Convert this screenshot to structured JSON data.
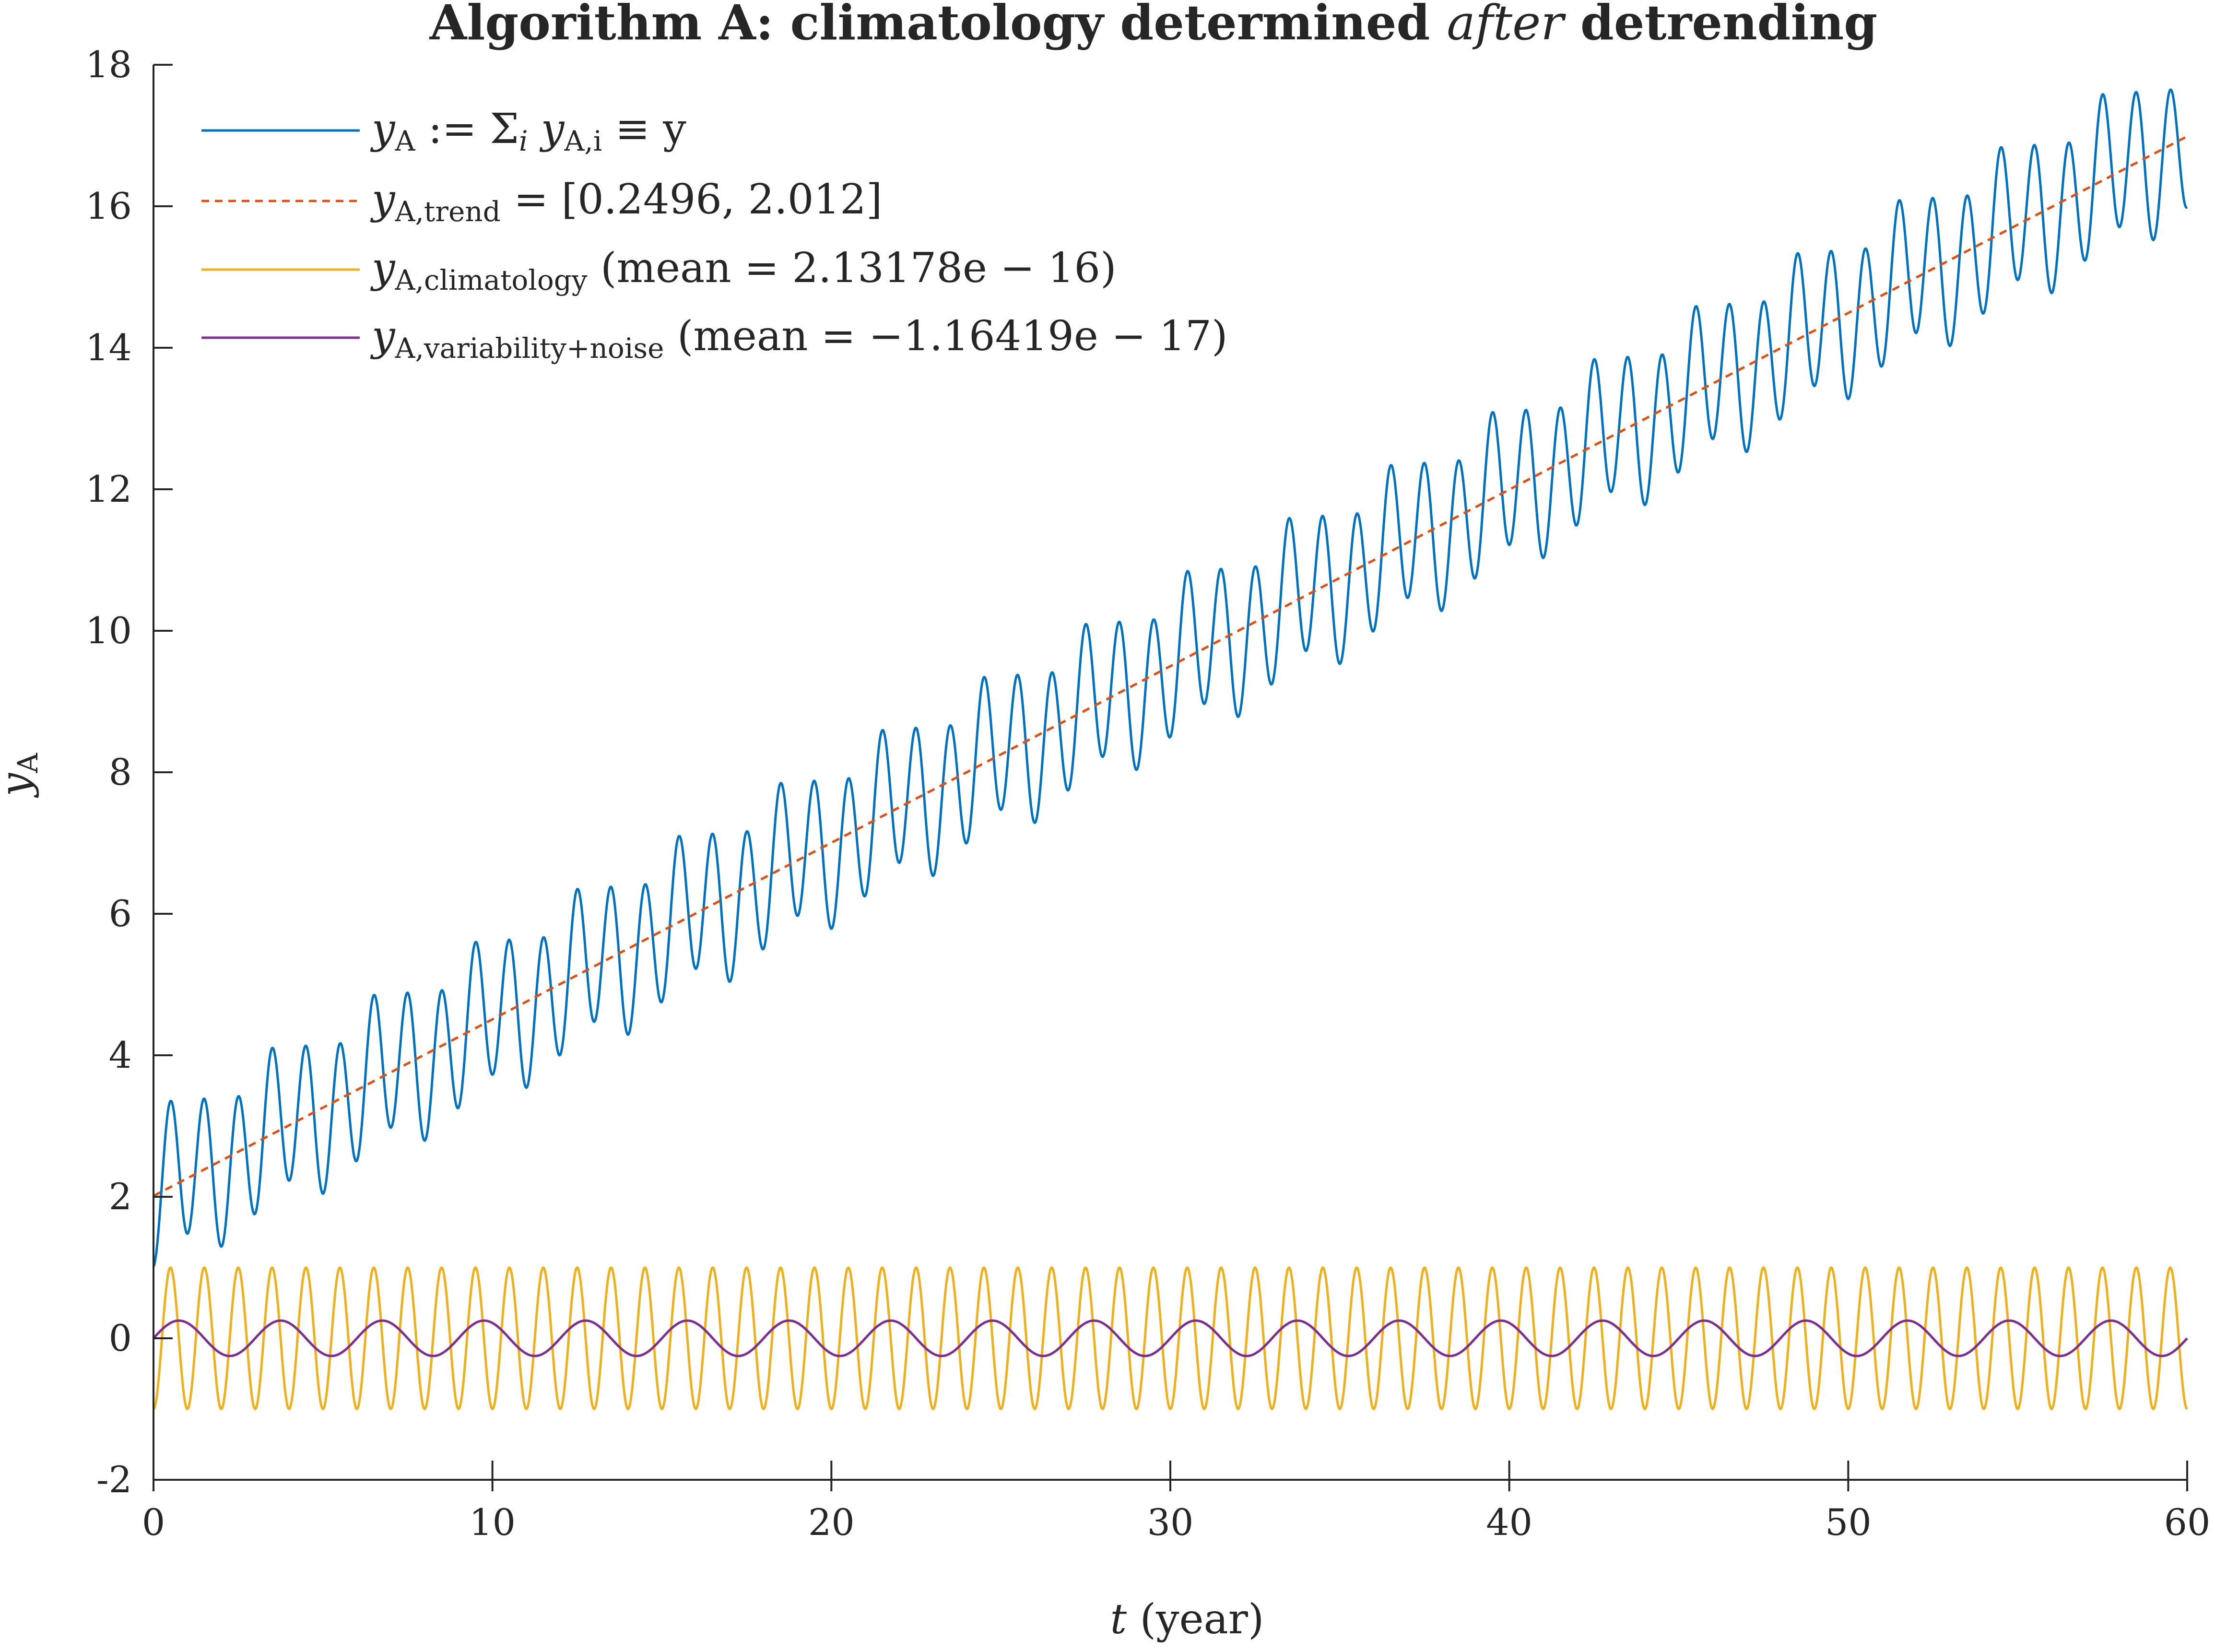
{
  "chart_data": {
    "type": "line",
    "title": {
      "before": "Algorithm A: climatology determined ",
      "emph": "after",
      "after": " detrending"
    },
    "xlabel": {
      "var": "t",
      "unit": " (year)"
    },
    "ylabel": {
      "var": "y",
      "sub": "A"
    },
    "xlim": [
      0,
      60
    ],
    "ylim": [
      -2,
      18
    ],
    "xticks": [
      0,
      10,
      20,
      30,
      40,
      50,
      60
    ],
    "xtick_labels": [
      "0",
      "10",
      "20",
      "30",
      "40",
      "50",
      "60"
    ],
    "yticks": [
      -2,
      0,
      2,
      4,
      6,
      8,
      10,
      12,
      14,
      16,
      18
    ],
    "ytick_labels": [
      "-2",
      "0",
      "2",
      "4",
      "6",
      "8",
      "10",
      "12",
      "14",
      "16",
      "18"
    ],
    "grid": false,
    "legend_position": "top-left",
    "series": [
      {
        "name": "y_A := Σ_i y_A,i ≡ y",
        "legend": {
          "var": "y",
          "sub": "A",
          "rest": " := Σ",
          "sub2": "i",
          "rest2": " y",
          "sub3": "A,i",
          "rest3": " ≡ y"
        },
        "color": "#0072BD",
        "style": "solid",
        "trend": [
          0.2496,
          2.012
        ],
        "annual_amplitude": 1.0,
        "annual_period": 1.0,
        "variability_amplitude": 0.25,
        "variability_period": 3.0
      },
      {
        "name": "y_A,trend = [0.2496, 2.012]",
        "legend": {
          "var": "y",
          "sub": "A,trend",
          "rest": " = [0.2496, 2.012]"
        },
        "color": "#D95319",
        "style": "dashed",
        "slope": 0.2496,
        "intercept": 2.012
      },
      {
        "name": "y_A,climatology (mean = 2.13178e − 16)",
        "legend": {
          "var": "y",
          "sub": "A,climatology",
          "rest": " (mean = 2.13178e − 16)"
        },
        "color": "#EDB120",
        "style": "solid",
        "amplitude": 1.0,
        "period": 1.0,
        "mean": 2.13178e-16
      },
      {
        "name": "y_A,variability+noise (mean = −1.16419e − 17)",
        "legend": {
          "var": "y",
          "sub": "A,variability+noise",
          "rest": " (mean = −1.16419e − 17)"
        },
        "color": "#7E2F8E",
        "style": "solid",
        "amplitude": 0.25,
        "period": 3.0,
        "mean": -1.16419e-17
      }
    ]
  }
}
